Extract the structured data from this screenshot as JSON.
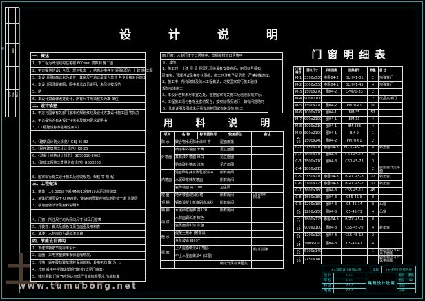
{
  "colors": {
    "background": "#000000",
    "frame_teal": "#2f9f9f",
    "line_white": "#e2e2e2",
    "titleblock_cyan": "#44dbdb",
    "watermark_brown": "#4a3c30",
    "watermark_gray": "#b3ada6"
  },
  "sheet": {
    "title": "设 计 说 明",
    "margin_char": "建"
  },
  "strip": {
    "cells": [
      "会签",
      "专业",
      "姓名",
      "日期"
    ]
  },
  "watermark": {
    "logo": "土木帮",
    "url": "www.tumubong.net"
  },
  "notes": {
    "rows": [
      {
        "t": "一、概述",
        "cls": "hd"
      },
      {
        "t": "1、本工程为砖混结构住宅楼 600mm 模数制 施工图"
      },
      {
        "t": "2、甲方提供的设计合同、规划批文　，结构水电各专业图纸配合 土 建 施 工图",
        "cls": "ov"
      },
      {
        "t": "3、本设计图标高以米为单位，其余尺寸均以毫米为单位 各专业核对后施工",
        "cls": "ov"
      },
      {
        "t": "4、本设计图须经审图，图中做法详见说明，未尽处按规范"
      },
      {
        "t": "5、略"
      },
      {
        "t": "6、本设计如需修改变更计，所有尺寸均须核实为准 单位"
      },
      {
        "t": "二、设计依据",
        "cls": "hd"
      },
      {
        "t": "1、甲方与国家有关部门批准的规划红线及设计方案设计施工图 等批文",
        "cls": "ov"
      },
      {
        "t": "2、甲方提供的有关设计任务书及使用要求说明书"
      },
      {
        "t": "3、《工程建设标准强制性条文》"
      },
      {
        "t": "",
        "cls": "gap"
      },
      {
        "t": "4、《建筑设计防火规范》GBJ-45-82"
      },
      {
        "t": "5、《民用建筑热工设计规范》JGJ-25"
      },
      {
        "t": "6、《混凝土结构设计规范》GB50010-2002"
      },
      {
        "t": "7、《砌体工程施工质量验收规范》GB50203"
      },
      {
        "t": "",
        "cls": "gap"
      },
      {
        "t": "8、国家现行有关设计施工及验收规范、规程 等 规 程"
      },
      {
        "t": "三、工程做法",
        "cls": "hd"
      },
      {
        "t": "1、墙体：±0.000以下采用MU10砖M10水泥砂浆砌筑"
      },
      {
        "t": "2、墙体防潮层设于-0.060处，做6MM厚聚合物防水砂浆一道 防潮层",
        "cls": "ov"
      },
      {
        "t": "3、楼地面做法详见用料说明表"
      },
      {
        "t": "",
        "cls": "gap"
      },
      {
        "t": "4、门窗：所注尺寸均为洞口尺寸 详见门窗表"
      },
      {
        "t": "5、外装修：做法及颜色详见立面图及用料表"
      },
      {
        "t": "6、油漆：木材面均为调和漆三遍"
      },
      {
        "t": "四、节能设计说明",
        "cls": "hd"
      },
      {
        "t": "1、本建筑物按节能标准设计"
      },
      {
        "t": "2、屋面：采用挤塑聚苯板保温隔热层，"
      },
      {
        "t": "3、外墙：采用胶粉聚苯颗粒保温浆料，外墙平均 数 为　。"
      },
      {
        "t": "4、外窗 采用中空玻璃塑钢节能窗(详见门窗表)"
      },
      {
        "t": "5、体形系数 门窗气密性达到现行节能标准要求 节能标准",
        "cls": "ov"
      }
    ]
  },
  "side_notes": {
    "lines": [
      {
        "t": "四.门窗：木制门樘立口居墙中，塑钢窗樘立口居墙中",
        "cls": "ub"
      },
      {
        "t": "五、其他：",
        "cls": "ub"
      },
      {
        "t": "1、施工时，土建 预 留 预留孔洞待设备安装完后，用同标号细石"
      },
      {
        "t": "砼填实，预埋件详见各专业图纸，施工时注意予留予埋，严禁剔凿施工。"
      },
      {
        "t": "2、施工中，所有砌体及防水工程做法，均按国家现行施工验收"
      },
      {
        "t": "规范标准施工"
      },
      {
        "t": "3、本设计若有未尽事宜之处，皆按国家有关施工及验收规范执行，"
      },
      {
        "t": "4、工程施工须与各专业密切配合，按实际情况进行，如有问题随时"
      },
      {
        "t": "5、凡本说明及图纸未尽事宜均按国家有关规范 施 工",
        "cls": "boxed"
      }
    ]
  },
  "material": {
    "title": "用 料 说 明",
    "widths": [
      20,
      34,
      31,
      47,
      46
    ],
    "header": [
      "项目",
      "名 称",
      "标准图集号",
      "使用部位",
      "备注"
    ],
    "rows": [
      [
        {
          "t": "防 水"
        },
        {
          "t": "聚合物水泥防水涂料 等",
          "cs": 2
        },
        {
          "t": "屋面雨篷"
        },
        {
          "t": ""
        }
      ],
      [
        {
          "t": "外墙面",
          "rs": 3
        },
        {
          "t": "喷涂料外墙面 米黄",
          "cs": 2
        },
        {
          "t": "见立面图"
        },
        {
          "t": ""
        }
      ],
      [
        {
          "t": "真石漆外墙面 米白",
          "cs": 2
        },
        {
          "t": "见立面图"
        },
        {
          "t": ""
        }
      ],
      [
        {
          "t": "贴面砖外墙面 浅灰",
          "cs": 2
        },
        {
          "t": "见立面图"
        },
        {
          "t": ""
        }
      ],
      [
        {
          "t": "内墙面",
          "rs": 3
        },
        {
          "t": "混合砂浆抹灰刷乳胶漆-A",
          "cs": 2
        },
        {
          "t": "所有房间"
        },
        {
          "t": ""
        }
      ],
      [
        {
          "t": "水泥砂浆抹灰墙面",
          "cs": 2
        },
        {
          "t": "所有房间"
        },
        {
          "t": ""
        }
      ],
      [
        {
          "t": "瓷砖墙面 高2100",
          "cs": 2
        },
        {
          "t": "卫生间"
        },
        {
          "t": ""
        }
      ],
      [
        {
          "t": "楼 面"
        },
        {
          "t": "地砖楼面(防滑) 略",
          "cs": 2
        },
        {
          "t": "所有房间"
        },
        {
          "t": "卫生间加做\n防水层",
          "cls": "tiny"
        }
      ],
      [
        {
          "t": "顶 棚"
        },
        {
          "t": "钢筋混凝土板底刷白涂料",
          "cs": 2
        },
        {
          "t": "所有房间"
        },
        {
          "t": ""
        }
      ],
      [
        {
          "t": "踢 脚"
        },
        {
          "t": "水泥砂浆踢脚 高120",
          "cs": 2
        },
        {
          "t": "所有房间"
        },
        {
          "t": ""
        }
      ],
      [
        {
          "t": "油 漆",
          "rs": 2
        },
        {
          "t": "木材面调和漆 棕色",
          "cs": 2
        },
        {
          "t": ""
        },
        {
          "t": ""
        }
      ],
      [
        {
          "t": "金属面调和漆 灰色",
          "cs": 2
        },
        {
          "t": ""
        },
        {
          "t": ""
        }
      ],
      [
        {
          "t": "散 水",
          "rs": 2
        },
        {
          "t": "混凝土散水 (附做法)",
          "cs": 2
        },
        {
          "t": ""
        },
        {
          "t": ""
        }
      ],
      [
        {
          "t": "台阶坡道 JBJ-97",
          "cs": 2
        },
        {
          "t": ""
        },
        {
          "t": ""
        }
      ],
      [
        {
          "t": "屋 面",
          "rs": 2
        },
        {
          "t": "上人屋面做法4 (详图)",
          "cs": 2
        },
        {
          "t": ""
        },
        {
          "t": "做法详见图集",
          "cls": "tiny"
        }
      ],
      [
        {
          "t": "不上人屋面做法4 (详图)",
          "cs": 2
        },
        {
          "t": ""
        },
        {
          "t": ""
        }
      ],
      [
        {
          "t": ""
        },
        {
          "t": "",
          "cs": 2
        },
        {
          "t": "做法详见标准图集"
        },
        {
          "t": ""
        }
      ]
    ]
  },
  "schedule": {
    "title": "门窗明细表",
    "widths": [
      14,
      26,
      29,
      38,
      16,
      35
    ],
    "header": [
      "门窗编号",
      "洞口尺寸",
      "采用图集",
      "图集编号",
      "数量",
      "备 注"
    ],
    "rows": [
      [
        "M-1",
        "3300x3300",
        "参图04-2",
        "DLHM1-31",
        "2",
        "地弹簧门"
      ],
      [
        "M-2",
        "3000x3300",
        "参图04-1",
        "DLHM1-45",
        "4",
        "地弹簧门"
      ],
      [
        "M-3",
        "1500x2700",
        "图04-2",
        "LPM70-33",
        "2",
        ""
      ],
      [
        "M-4",
        "900x2700",
        "",
        "",
        "2",
        "成品夹板门"
      ],
      [
        "M-5",
        "1500x2700",
        "图04-2",
        "PM70-41",
        "10",
        ""
      ],
      [
        "M-6",
        "1000x2700",
        "图04-1",
        "BM-35",
        "57",
        ""
      ],
      [
        "M-7",
        "900x2100",
        "图04-1",
        "BM-33",
        "4",
        ""
      ],
      [
        "M-8",
        "1000x2100",
        "图04-1",
        "BM-233",
        "4",
        ""
      ],
      [
        "M-9",
        "800x2100",
        "图04-1",
        "BM-9",
        "1",
        ""
      ],
      [
        "M-10",
        "1500x2400",
        "图04-2",
        "PM70-61",
        "2",
        ""
      ],
      [
        "C-1",
        "3150x2100",
        "参图04-3",
        "BGTC-45-35",
        "4",
        "转角窗"
      ],
      [
        "C-2",
        "1800x2100",
        "图04-3",
        "C50-45-17",
        "10",
        ""
      ],
      [
        "C-3",
        "1500x2100",
        "图04-3",
        "C50-45-73",
        "3",
        ""
      ],
      [
        "C-4",
        "1800x2150",
        "",
        "",
        "2",
        "弧形窗详见平面"
      ],
      [
        "C-5",
        "3150x2100",
        "参图04-3",
        "BGTC-45-3",
        "12",
        "转角窗"
      ],
      [
        "C-6",
        "3100x2250",
        "参图04-3",
        "BGTC-45-2",
        "12",
        "转角窗"
      ],
      [
        "C-7",
        "1800x1800",
        "图04-3",
        "C55-45-11",
        "45",
        ""
      ],
      [
        "C-8",
        "1500x1800",
        "图04-3",
        "C55-45-8",
        "8",
        ""
      ],
      [
        "C-9",
        "1200x1800",
        "图04-3",
        "C5-45-14",
        "8",
        "凸窗"
      ],
      [
        "C-10",
        "1200x1500",
        "图04-3",
        "C5-45-71",
        "4",
        "凸窗"
      ],
      [
        "C-11",
        "1800x2250",
        "参图04-3",
        "BGTC-45-4",
        "8",
        ""
      ],
      [
        "C-12",
        "900x2100",
        "图04-3",
        "C55-45-70",
        "4",
        "转角窗"
      ],
      [
        "C-13",
        "1200x1200",
        "图04-3",
        "C55-45-12",
        "2",
        ""
      ],
      [
        "C-14",
        "900x900",
        "图04-3",
        "C5-45-41",
        "4",
        ""
      ],
      [
        "C-15",
        "5700x1400",
        "",
        "",
        "1",
        "弧形窗尺寸详见平面图"
      ],
      [
        "C-16",
        "7150x1400",
        "",
        "",
        "1",
        "弧形窗尺寸详见平面图"
      ]
    ]
  },
  "titleblock": {
    "company": "××建筑设计有限公司",
    "project_label": "工程",
    "project": "××住宅小区综合楼",
    "rows": [
      {
        "l": "设 计",
        "v": "×××"
      },
      {
        "l": "审 核",
        "v": "×××"
      },
      {
        "l": "校 对",
        "v": "×××"
      },
      {
        "l": "制 图",
        "v": "×××"
      }
    ],
    "drawing_name": "建筑设计说明",
    "right": [
      {
        "l": "图别",
        "v": "建施"
      },
      {
        "l": "图号",
        "v": "02"
      },
      {
        "l": "比例",
        "v": ""
      },
      {
        "l": "日期",
        "v": ""
      }
    ]
  }
}
